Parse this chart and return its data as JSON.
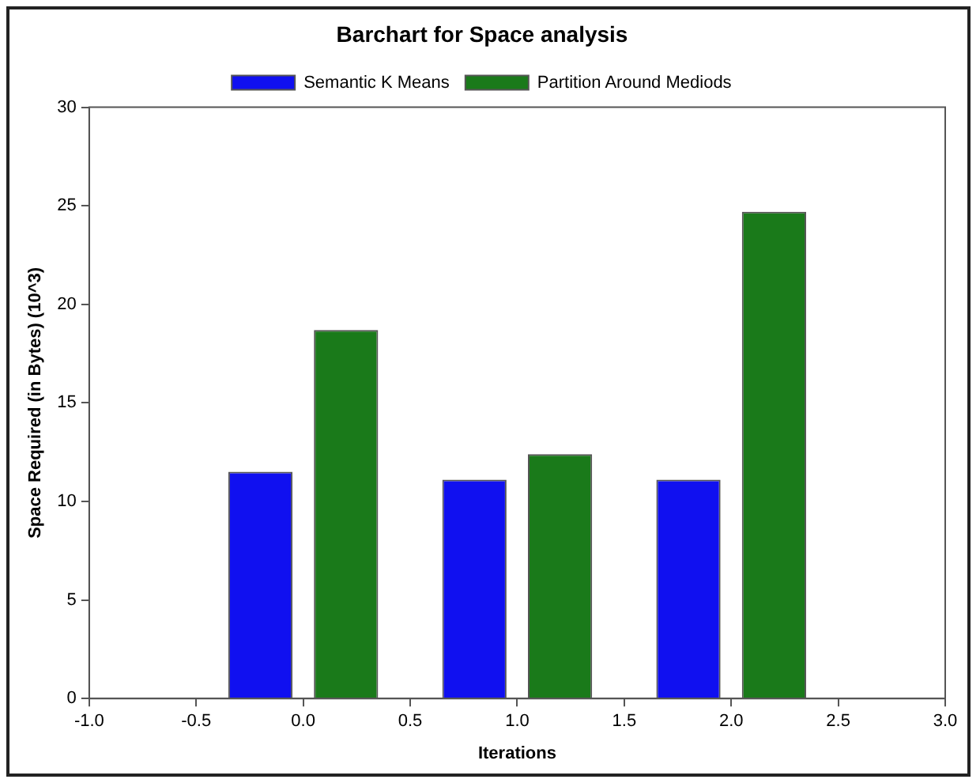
{
  "chart_data": {
    "type": "bar",
    "title": "Barchart for Space analysis",
    "xlabel": "Iterations",
    "ylabel": "Space Required (in Bytes) (10^3)",
    "series": [
      {
        "name": "Semantic K Means",
        "color": "#1010f0",
        "x": [
          -0.2,
          0.8,
          1.8
        ],
        "values": [
          11.5,
          11.1,
          11.1
        ]
      },
      {
        "name": "Partition Around Mediods",
        "color": "#1a7a1a",
        "x": [
          0.2,
          1.2,
          2.2
        ],
        "values": [
          18.7,
          12.4,
          24.7
        ]
      }
    ],
    "xlim": [
      -1,
      3
    ],
    "xticks": [
      {
        "value": -1,
        "label": "-1.0"
      },
      {
        "value": -0.5,
        "label": "-0.5"
      },
      {
        "value": 0,
        "label": "0.0"
      },
      {
        "value": 0.5,
        "label": "0.5"
      },
      {
        "value": 1,
        "label": "1.0"
      },
      {
        "value": 1.5,
        "label": "1.5"
      },
      {
        "value": 2,
        "label": "2.0"
      },
      {
        "value": 2.5,
        "label": "2.5"
      },
      {
        "value": 3,
        "label": "3.0"
      }
    ],
    "ylim": [
      0,
      30
    ],
    "yticks": [
      0,
      5,
      10,
      15,
      20,
      25,
      30
    ],
    "grid": false,
    "legend": "top"
  }
}
